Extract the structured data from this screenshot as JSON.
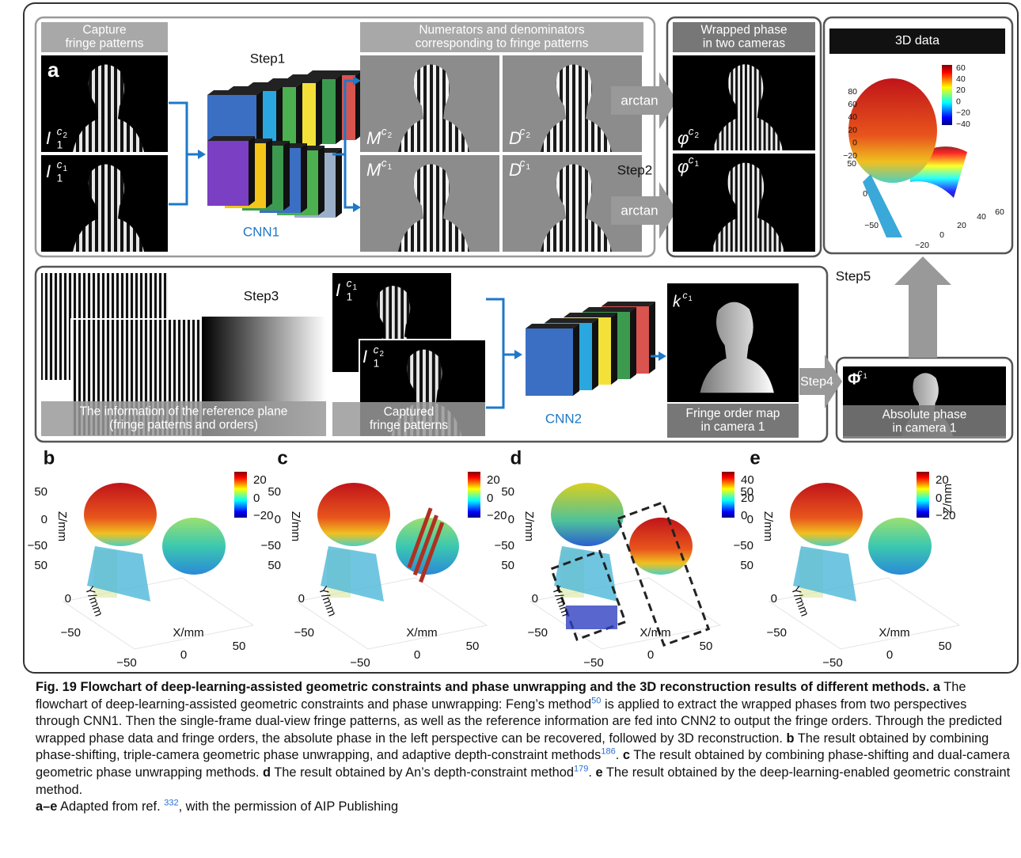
{
  "panel_a": {
    "letter": "a",
    "capture_label": [
      "Capture",
      "fringe patterns"
    ],
    "capture_images": [
      {
        "base": "I",
        "sub": "1",
        "sup": "c",
        "sup_sub": "2"
      },
      {
        "base": "I",
        "sub": "1",
        "sup": "c",
        "sup_sub": "1"
      }
    ],
    "step1": "Step1",
    "cnn1": "CNN1",
    "numden_label": [
      "Numerators and denominators",
      "corresponding to fringe patterns"
    ],
    "numden_images": [
      {
        "base": "M",
        "sup": "c",
        "sup_sub": "2"
      },
      {
        "base": "D",
        "sup": "c",
        "sup_sub": "2"
      },
      {
        "base": "M",
        "sup": "c",
        "sup_sub": "1"
      },
      {
        "base": "D",
        "sup": "c",
        "sup_sub": "1"
      }
    ],
    "arctan": [
      "arctan",
      "arctan"
    ],
    "step2": "Step2",
    "wrapped_label": [
      "Wrapped phase",
      "in two cameras"
    ],
    "wrapped_images": [
      {
        "base": "φ",
        "sup": "c",
        "sup_sub": "2"
      },
      {
        "base": "φ",
        "sup": "c",
        "sup_sub": "1"
      }
    ],
    "data3d": {
      "title": "3D data",
      "colorbar_ticks": [
        "60",
        "40",
        "20",
        "0",
        "−20",
        "−40"
      ],
      "z_ticks": [
        "80",
        "60",
        "40",
        "20",
        "0",
        "−20"
      ],
      "y_ticks": [
        "50",
        "0",
        "−50"
      ],
      "x_ticks": [
        "−20",
        "0",
        "20",
        "40",
        "60"
      ]
    },
    "step3": "Step3",
    "reference_label": [
      "The information of the reference plane",
      "(fringe patterns and orders)"
    ],
    "captured_images": [
      {
        "base": "I",
        "sub": "1",
        "sup": "c",
        "sup_sub": "1"
      },
      {
        "base": "I",
        "sub": "1",
        "sup": "c",
        "sup_sub": "2"
      }
    ],
    "captured_label": [
      "Captured",
      "fringe patterns"
    ],
    "cnn2": "CNN2",
    "order_image": {
      "base": "k",
      "sup": "c",
      "sup_sub": "1"
    },
    "order_label": [
      "Fringe order map",
      "in camera 1"
    ],
    "step4": "Step4",
    "absolute_image": {
      "base": "Φ",
      "sup": "c",
      "sup_sub": "1"
    },
    "absolute_label": [
      "Absolute phase",
      "in camera 1"
    ],
    "step5": "Step5"
  },
  "result_panels": [
    {
      "letter": "b",
      "colorbar_ticks": [
        "20",
        "0",
        "−20"
      ],
      "z_label": "Z/mm",
      "z_ticks": [
        "50",
        "0",
        "−50"
      ],
      "y_label": "Y/mm",
      "y_ticks": [
        "50",
        "0",
        "−50"
      ],
      "x_label": "X/mm",
      "x_ticks": [
        "−50",
        "0",
        "50"
      ]
    },
    {
      "letter": "c",
      "colorbar_ticks": [
        "20",
        "0",
        "−20"
      ],
      "z_label": "Z/mm",
      "z_ticks": [
        "50",
        "0",
        "−50"
      ],
      "y_label": "Y/mm",
      "y_ticks": [
        "50",
        "0",
        "−50"
      ],
      "x_label": "X/mm",
      "x_ticks": [
        "−50",
        "0",
        "50"
      ]
    },
    {
      "letter": "d",
      "colorbar_ticks": [
        "40",
        "20",
        "0"
      ],
      "z_label": "Z/mm",
      "z_ticks": [
        "50",
        "0",
        "−50"
      ],
      "y_label": "Y/mm",
      "y_ticks": [
        "50",
        "0",
        "−50"
      ],
      "x_label": "X/mm",
      "x_ticks": [
        "−50",
        "0",
        "50"
      ]
    },
    {
      "letter": "e",
      "colorbar_ticks": [
        "20",
        "0",
        "−20"
      ],
      "colorbar_label": "Z/mm",
      "z_label": "Z/mm",
      "z_ticks": [
        "50",
        "0",
        "−50"
      ],
      "y_label": "Y/mm",
      "y_ticks": [
        "50",
        "0",
        "−50"
      ],
      "x_label": "X/mm",
      "x_ticks": [
        "−50",
        "0",
        "50"
      ]
    }
  ],
  "caption": {
    "title": "Fig. 19 Flowchart of deep-learning-assisted geometric constraints and phase unwrapping and the 3D reconstruction results of different methods.",
    "items": [
      {
        "label": "a",
        "parts": [
          {
            "text": "The flowchart of deep-learning-assisted geometric constraints and phase unwrapping: Feng’s method"
          },
          {
            "ref": "50"
          },
          {
            "text": " is applied to extract the wrapped phases from two perspectives through CNN1. Then the single-frame dual-view fringe patterns, as well as the reference information are fed into CNN2 to output the fringe orders. Through the predicted wrapped phase data and fringe orders, the absolute phase in the left perspective can be recovered, followed by 3D reconstruction."
          }
        ]
      },
      {
        "label": "b",
        "parts": [
          {
            "text": "The result obtained by combining phase-shifting, triple-camera geometric phase unwrapping, and adaptive depth-constraint methods"
          },
          {
            "ref": "186"
          },
          {
            "text": "."
          }
        ]
      },
      {
        "label": "c",
        "parts": [
          {
            "text": "The result obtained by combining phase-shifting and dual-camera geometric phase unwrapping methods."
          }
        ]
      },
      {
        "label": "d",
        "parts": [
          {
            "text": "The result obtained by An’s depth-constraint method"
          },
          {
            "ref": "179"
          },
          {
            "text": "."
          }
        ]
      },
      {
        "label": "e",
        "parts": [
          {
            "text": "The result obtained by the deep-learning-enabled geometric constraint method."
          }
        ]
      },
      {
        "label": "a–e",
        "parts": [
          {
            "text": "Adapted from ref. "
          },
          {
            "ref": "332"
          },
          {
            "text": ", with the permission of AIP Publishing"
          }
        ]
      }
    ]
  }
}
